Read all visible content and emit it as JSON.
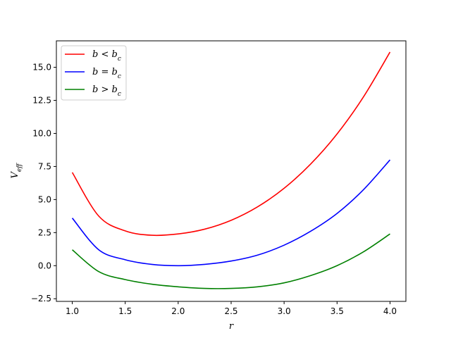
{
  "chart_data": {
    "type": "line",
    "xlabel": "r",
    "ylabel": "V_eff",
    "xlim": [
      0.85,
      4.15
    ],
    "ylim": [
      -2.7,
      17.0
    ],
    "xticks": [
      1.0,
      1.5,
      2.0,
      2.5,
      3.0,
      3.5,
      4.0
    ],
    "xtick_labels": [
      "1.0",
      "1.5",
      "2.0",
      "2.5",
      "3.0",
      "3.5",
      "4.0"
    ],
    "yticks": [
      -2.5,
      0.0,
      2.5,
      5.0,
      7.5,
      10.0,
      12.5,
      15.0
    ],
    "ytick_labels": [
      "−2.5",
      "0.0",
      "2.5",
      "5.0",
      "7.5",
      "10.0",
      "12.5",
      "15.0"
    ],
    "grid": false,
    "legend_position": "upper-left",
    "x": [
      1.0,
      1.25,
      1.5,
      1.75,
      2.0,
      2.25,
      2.5,
      2.75,
      3.0,
      3.25,
      3.5,
      3.75,
      4.0
    ],
    "series": [
      {
        "name": "b < b_c",
        "legend_main": "b < b",
        "legend_sub": "c",
        "color": "#ff0000",
        "values": [
          7.05,
          3.75,
          2.63,
          2.3,
          2.4,
          2.76,
          3.43,
          4.45,
          5.85,
          7.68,
          9.96,
          12.77,
          16.15
        ]
      },
      {
        "name": "b = b_c",
        "legend_main": "b = b",
        "legend_sub": "c",
        "color": "#0000ff",
        "values": [
          3.6,
          1.2,
          0.45,
          0.1,
          0.0,
          0.1,
          0.35,
          0.8,
          1.55,
          2.6,
          3.95,
          5.75,
          8.0
        ]
      },
      {
        "name": "b > b_c",
        "legend_main": "b > b",
        "legend_sub": "c",
        "color": "#008000",
        "values": [
          1.2,
          -0.45,
          -1.05,
          -1.4,
          -1.6,
          -1.72,
          -1.72,
          -1.6,
          -1.3,
          -0.75,
          0.0,
          1.05,
          2.4
        ]
      }
    ]
  }
}
